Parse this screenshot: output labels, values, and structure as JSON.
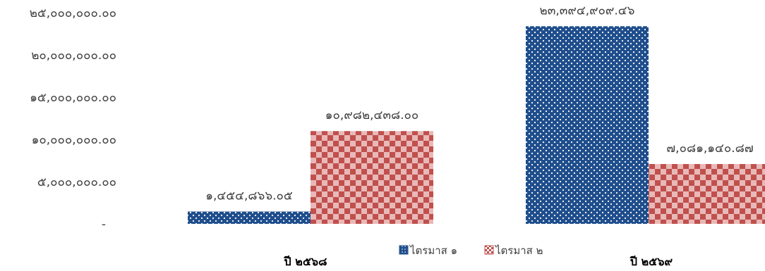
{
  "chart_data": {
    "type": "bar",
    "categories": [
      "ปี ๒๕๖๘",
      "ปี ๒๕๖๙"
    ],
    "series": [
      {
        "name": "ไตรมาส ๑",
        "values": [
          1454866.05,
          23394909.46
        ],
        "labels": [
          "๑,๔๕๔,๘๖๖.๐๕",
          "๒๓,๓๙๔,๙๐๙.๔๖"
        ],
        "color": "#1F4E8C",
        "pattern": "white-dots"
      },
      {
        "name": "ไตรมาส ๒",
        "values": [
          10982438.0,
          7081140.87
        ],
        "labels": [
          "๑๐,๙๘๒,๔๓๘.๐๐",
          "๗,๐๘๑,๑๔๐.๘๗"
        ],
        "color": "#C0504D",
        "pattern": "checker"
      }
    ],
    "ylim": [
      0,
      25000000
    ],
    "yticks": [
      {
        "value": 0,
        "label": "-"
      },
      {
        "value": 5000000,
        "label": "๕,๐๐๐,๐๐๐.๐๐"
      },
      {
        "value": 10000000,
        "label": "๑๐,๐๐๐,๐๐๐.๐๐"
      },
      {
        "value": 15000000,
        "label": "๑๕,๐๐๐,๐๐๐.๐๐"
      },
      {
        "value": 20000000,
        "label": "๒๐,๐๐๐,๐๐๐.๐๐"
      },
      {
        "value": 25000000,
        "label": "๒๕,๐๐๐,๐๐๐.๐๐"
      }
    ],
    "grid": false,
    "legend_position": "bottom-center",
    "title": "",
    "xlabel": "",
    "ylabel": ""
  }
}
